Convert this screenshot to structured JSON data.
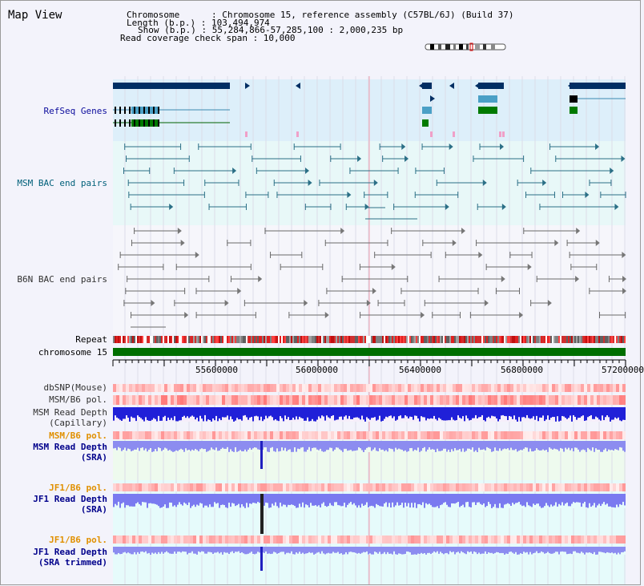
{
  "app": {
    "title": "Map View"
  },
  "info": {
    "lines": [
      "Chromosome      : Chromosome 15, reference assembly (C57BL/6J) (Build 37)",
      "Length (b.p.) : 103,494,974",
      "Show (b.p.) : 55,284,866-57,285,100 : 2,000,235 bp",
      "Read coverage check span : 10,000"
    ]
  },
  "tracks": {
    "refseq": "RefSeq Genes",
    "msm_bac": "MSM BAC end pairs",
    "b6n_bac": "B6N BAC end pairs",
    "repeat": "Repeat",
    "chromosome": "chromosome 15",
    "dbsnp": "dbSNP(Mouse)",
    "msm_b6_pol": "MSM/B6 pol.",
    "msm_read_depth_cap_1": "MSM Read Depth",
    "msm_read_depth_cap_2": "(Capillary)",
    "msm_b6_pol_2": "MSM/B6 pol.",
    "msm_read_depth_sra_1": "MSM Read Depth",
    "msm_read_depth_sra_2": "(SRA)",
    "jf1_b6_pol": "JF1/B6 pol.",
    "jf1_read_depth_sra_1": "JF1 Read Depth",
    "jf1_read_depth_sra_2": "(SRA)",
    "jf1_b6_pol_2": "JF1/B6 pol.",
    "jf1_read_depth_trim_1": "JF1 Read Depth",
    "jf1_read_depth_trim_2": "(SRA trimmed)"
  },
  "axis": {
    "ticks": [
      "55600000",
      "56000000",
      "56400000",
      "56800000",
      "57200000"
    ]
  },
  "colors": {
    "refseq_bg": "#ddeffa",
    "msm_bg": "#e8f8f8",
    "gene_navy": "#002e63",
    "gene_blue": "#4aa0c6",
    "gene_green": "#007a00",
    "bac_msm": "#2b6f86",
    "bac_b6n": "#6a6a6a",
    "chrom_green": "#006e00"
  }
}
